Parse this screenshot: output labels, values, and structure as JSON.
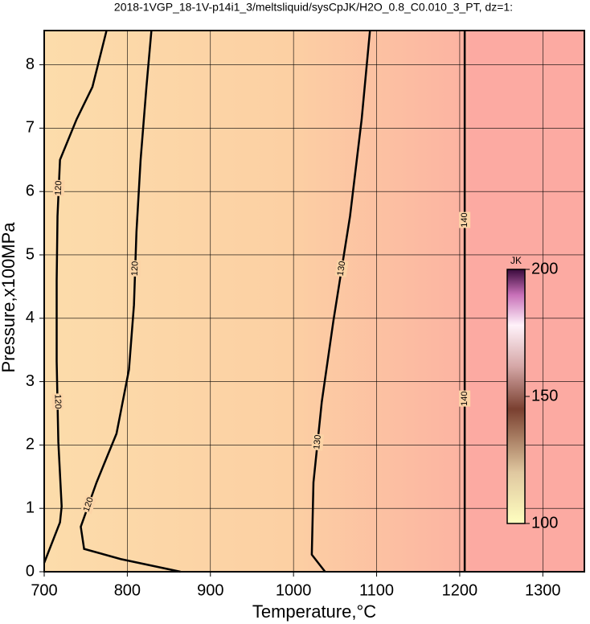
{
  "chart_data": {
    "type": "contour",
    "title": "2018-1VGP_18-1V-p14i1_3/meltsliquid/sysCpJK/H2O_0.8_C0.010_3_PT, dz=1:",
    "x_label": "Temperature,°C",
    "y_label": "Pressure,x100MPa",
    "xlim": [
      700,
      1350
    ],
    "ylim": [
      0,
      8.54
    ],
    "xticks": [
      700,
      800,
      900,
      1000,
      1100,
      1200,
      1300
    ],
    "yticks": [
      0,
      1,
      2,
      3,
      4,
      5,
      6,
      7,
      8
    ],
    "grid": true,
    "colorbar": {
      "title": "JK",
      "clim": [
        100,
        200
      ],
      "ticks": [
        100,
        150,
        200
      ]
    },
    "contours": [
      {
        "level": 120,
        "x": [
          700,
          719,
          721,
          717,
          715,
          715,
          716,
          719,
          739,
          758,
          775
        ],
        "y": [
          0.14,
          0.78,
          1.03,
          2.05,
          3.32,
          4.59,
          5.61,
          6.5,
          7.14,
          7.65,
          8.54
        ]
      },
      {
        "level": 120,
        "x": [
          864,
          792,
          748,
          744,
          763,
          787,
          802,
          808,
          811,
          816,
          823,
          829
        ],
        "y": [
          0,
          0.2,
          0.36,
          0.71,
          1.41,
          2.18,
          3.19,
          4.21,
          5.36,
          6.5,
          7.65,
          8.54
        ]
      },
      {
        "level": 130,
        "x": [
          1038,
          1022,
          1024,
          1034,
          1048,
          1068,
          1082,
          1092
        ],
        "y": [
          0,
          0.27,
          1.41,
          2.68,
          3.96,
          5.61,
          7.14,
          8.54
        ]
      },
      {
        "level": 140,
        "x": [
          1206,
          1206
        ],
        "y": [
          0,
          8.54
        ]
      }
    ]
  }
}
